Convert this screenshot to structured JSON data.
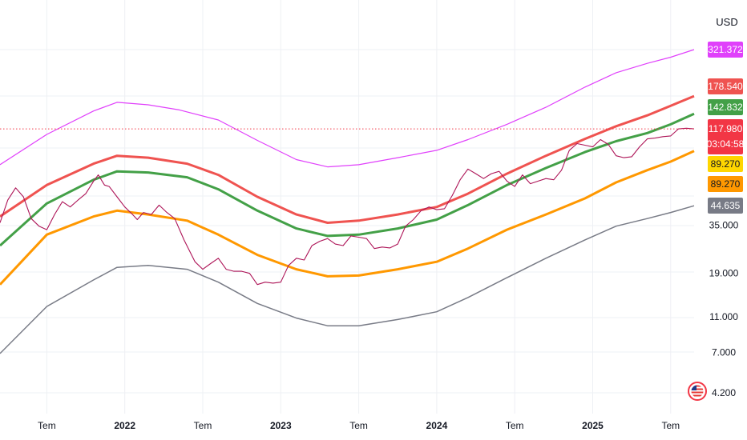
{
  "currency_label": "USD",
  "chart_data": {
    "type": "line",
    "scale": "log",
    "grid": true,
    "x": {
      "start": 2021.2,
      "end": 2025.65,
      "ticks": [
        {
          "value": 2021.5,
          "label": "Tem",
          "bold": false
        },
        {
          "value": 2022.0,
          "label": "2022",
          "bold": true
        },
        {
          "value": 2022.5,
          "label": "Tem",
          "bold": false
        },
        {
          "value": 2023.0,
          "label": "2023",
          "bold": true
        },
        {
          "value": 2023.5,
          "label": "Tem",
          "bold": false
        },
        {
          "value": 2024.0,
          "label": "2024",
          "bold": true
        },
        {
          "value": 2024.5,
          "label": "Tem",
          "bold": false
        },
        {
          "value": 2025.0,
          "label": "2025",
          "bold": true
        },
        {
          "value": 2025.5,
          "label": "Tem",
          "bold": false
        }
      ]
    },
    "y_ticks": [
      {
        "value": 35000,
        "label": "35.000"
      },
      {
        "value": 19000,
        "label": "19.000"
      },
      {
        "value": 11000,
        "label": "11.000"
      },
      {
        "value": 7000,
        "label": "7.000"
      },
      {
        "value": 4200,
        "label": "4.200"
      }
    ],
    "last_price": 117980,
    "countdown": "03:04:58",
    "price_badges": [
      {
        "label": "321.372",
        "value": 321372,
        "color": "#e040fb"
      },
      {
        "label": "178.540",
        "value": 178540,
        "color": "#ef5350"
      },
      {
        "label": "142.832",
        "value": 142832,
        "color": "#43a047"
      },
      {
        "label": "89.270",
        "value": 89270,
        "color": "#ffd600",
        "text_color": "#131722"
      },
      {
        "label": "89.270",
        "value": 89270,
        "color": "#ff9800",
        "text_color": "#131722"
      },
      {
        "label": "44.635",
        "value": 44635,
        "color": "#787b86"
      }
    ],
    "series": [
      {
        "key": "band_top",
        "color": "#e040fb",
        "width": 1.2,
        "points": [
          [
            2021.2,
            75000
          ],
          [
            2021.5,
            110000
          ],
          [
            2021.8,
            148000
          ],
          [
            2021.95,
            165000
          ],
          [
            2022.15,
            160000
          ],
          [
            2022.35,
            150000
          ],
          [
            2022.6,
            132000
          ],
          [
            2022.85,
            102000
          ],
          [
            2023.1,
            80000
          ],
          [
            2023.3,
            73000
          ],
          [
            2023.5,
            75000
          ],
          [
            2023.75,
            82000
          ],
          [
            2024.0,
            90000
          ],
          [
            2024.2,
            103000
          ],
          [
            2024.45,
            125000
          ],
          [
            2024.7,
            155000
          ],
          [
            2024.95,
            200000
          ],
          [
            2025.15,
            240000
          ],
          [
            2025.35,
            270000
          ],
          [
            2025.5,
            292000
          ],
          [
            2025.65,
            321372
          ]
        ]
      },
      {
        "key": "band_upper",
        "color": "#ef5350",
        "width": 3,
        "points": [
          [
            2021.2,
            39000
          ],
          [
            2021.5,
            58000
          ],
          [
            2021.8,
            76000
          ],
          [
            2021.95,
            84000
          ],
          [
            2022.15,
            82000
          ],
          [
            2022.4,
            76000
          ],
          [
            2022.6,
            66000
          ],
          [
            2022.85,
            50000
          ],
          [
            2023.1,
            40000
          ],
          [
            2023.3,
            36000
          ],
          [
            2023.5,
            37000
          ],
          [
            2023.75,
            40000
          ],
          [
            2024.0,
            44000
          ],
          [
            2024.2,
            52000
          ],
          [
            2024.45,
            67000
          ],
          [
            2024.7,
            84000
          ],
          [
            2024.95,
            104000
          ],
          [
            2025.15,
            122000
          ],
          [
            2025.35,
            140000
          ],
          [
            2025.5,
            158000
          ],
          [
            2025.65,
            178540
          ]
        ]
      },
      {
        "key": "band_mid",
        "color": "#43a047",
        "width": 3,
        "points": [
          [
            2021.2,
            27000
          ],
          [
            2021.5,
            46000
          ],
          [
            2021.8,
            62000
          ],
          [
            2021.95,
            69000
          ],
          [
            2022.15,
            68000
          ],
          [
            2022.4,
            64000
          ],
          [
            2022.6,
            55000
          ],
          [
            2022.85,
            42000
          ],
          [
            2023.1,
            33500
          ],
          [
            2023.3,
            30500
          ],
          [
            2023.5,
            31000
          ],
          [
            2023.75,
            33500
          ],
          [
            2024.0,
            37500
          ],
          [
            2024.2,
            45000
          ],
          [
            2024.45,
            58000
          ],
          [
            2024.7,
            72000
          ],
          [
            2024.95,
            88000
          ],
          [
            2025.15,
            101000
          ],
          [
            2025.35,
            112000
          ],
          [
            2025.5,
            125000
          ],
          [
            2025.65,
            142832
          ]
        ]
      },
      {
        "key": "band_lower",
        "color": "#ff9800",
        "width": 3,
        "points": [
          [
            2021.2,
            16500
          ],
          [
            2021.5,
            31000
          ],
          [
            2021.8,
            39000
          ],
          [
            2021.95,
            42000
          ],
          [
            2022.15,
            40000
          ],
          [
            2022.4,
            37000
          ],
          [
            2022.6,
            31000
          ],
          [
            2022.85,
            24000
          ],
          [
            2023.1,
            20000
          ],
          [
            2023.3,
            18300
          ],
          [
            2023.5,
            18500
          ],
          [
            2023.75,
            20000
          ],
          [
            2024.0,
            22000
          ],
          [
            2024.2,
            26000
          ],
          [
            2024.45,
            33000
          ],
          [
            2024.7,
            40000
          ],
          [
            2024.95,
            49000
          ],
          [
            2025.15,
            60000
          ],
          [
            2025.35,
            70000
          ],
          [
            2025.5,
            78000
          ],
          [
            2025.65,
            89270
          ]
        ]
      },
      {
        "key": "band_bottom",
        "color": "#787b86",
        "width": 1.5,
        "points": [
          [
            2021.2,
            6900
          ],
          [
            2021.5,
            12500
          ],
          [
            2021.8,
            17500
          ],
          [
            2021.95,
            20500
          ],
          [
            2022.15,
            21000
          ],
          [
            2022.4,
            20000
          ],
          [
            2022.6,
            17000
          ],
          [
            2022.85,
            13000
          ],
          [
            2023.1,
            10800
          ],
          [
            2023.3,
            9800
          ],
          [
            2023.5,
            9800
          ],
          [
            2023.75,
            10600
          ],
          [
            2024.0,
            11700
          ],
          [
            2024.2,
            14000
          ],
          [
            2024.45,
            18000
          ],
          [
            2024.7,
            23000
          ],
          [
            2024.95,
            29000
          ],
          [
            2025.15,
            34500
          ],
          [
            2025.35,
            38000
          ],
          [
            2025.5,
            41000
          ],
          [
            2025.65,
            44635
          ]
        ]
      },
      {
        "key": "price",
        "color": "#ad1457",
        "width": 1.1,
        "points": [
          [
            2021.2,
            36000
          ],
          [
            2021.25,
            48000
          ],
          [
            2021.3,
            56000
          ],
          [
            2021.35,
            50000
          ],
          [
            2021.4,
            38000
          ],
          [
            2021.45,
            34500
          ],
          [
            2021.5,
            33000
          ],
          [
            2021.55,
            40000
          ],
          [
            2021.6,
            47000
          ],
          [
            2021.65,
            44000
          ],
          [
            2021.7,
            48000
          ],
          [
            2021.75,
            52000
          ],
          [
            2021.8,
            61000
          ],
          [
            2021.83,
            66000
          ],
          [
            2021.87,
            58000
          ],
          [
            2021.9,
            57000
          ],
          [
            2021.95,
            50000
          ],
          [
            2022.0,
            44000
          ],
          [
            2022.05,
            40000
          ],
          [
            2022.08,
            37500
          ],
          [
            2022.12,
            41000
          ],
          [
            2022.17,
            40000
          ],
          [
            2022.22,
            45000
          ],
          [
            2022.27,
            41000
          ],
          [
            2022.32,
            38000
          ],
          [
            2022.38,
            29000
          ],
          [
            2022.45,
            22000
          ],
          [
            2022.5,
            20000
          ],
          [
            2022.55,
            21500
          ],
          [
            2022.6,
            23000
          ],
          [
            2022.65,
            20000
          ],
          [
            2022.7,
            19500
          ],
          [
            2022.75,
            19500
          ],
          [
            2022.8,
            19000
          ],
          [
            2022.85,
            16500
          ],
          [
            2022.9,
            17000
          ],
          [
            2022.95,
            16800
          ],
          [
            2023.0,
            17000
          ],
          [
            2023.05,
            21000
          ],
          [
            2023.1,
            23000
          ],
          [
            2023.15,
            22500
          ],
          [
            2023.2,
            27000
          ],
          [
            2023.25,
            28500
          ],
          [
            2023.3,
            29500
          ],
          [
            2023.35,
            27500
          ],
          [
            2023.4,
            27000
          ],
          [
            2023.45,
            30500
          ],
          [
            2023.5,
            30000
          ],
          [
            2023.55,
            29500
          ],
          [
            2023.6,
            26000
          ],
          [
            2023.65,
            26500
          ],
          [
            2023.7,
            26200
          ],
          [
            2023.75,
            27500
          ],
          [
            2023.8,
            34500
          ],
          [
            2023.85,
            37500
          ],
          [
            2023.9,
            42000
          ],
          [
            2023.95,
            44000
          ],
          [
            2024.0,
            42500
          ],
          [
            2024.05,
            43000
          ],
          [
            2024.1,
            51000
          ],
          [
            2024.15,
            62000
          ],
          [
            2024.2,
            71000
          ],
          [
            2024.25,
            67000
          ],
          [
            2024.3,
            63000
          ],
          [
            2024.35,
            67000
          ],
          [
            2024.4,
            69000
          ],
          [
            2024.45,
            61000
          ],
          [
            2024.5,
            57000
          ],
          [
            2024.55,
            66000
          ],
          [
            2024.6,
            59000
          ],
          [
            2024.65,
            61000
          ],
          [
            2024.7,
            63000
          ],
          [
            2024.75,
            62000
          ],
          [
            2024.8,
            70000
          ],
          [
            2024.85,
            90000
          ],
          [
            2024.9,
            98000
          ],
          [
            2024.95,
            96000
          ],
          [
            2025.0,
            94000
          ],
          [
            2025.05,
            103000
          ],
          [
            2025.1,
            97000
          ],
          [
            2025.15,
            84000
          ],
          [
            2025.2,
            82000
          ],
          [
            2025.25,
            83000
          ],
          [
            2025.3,
            94000
          ],
          [
            2025.35,
            104000
          ],
          [
            2025.4,
            105000
          ],
          [
            2025.45,
            107000
          ],
          [
            2025.5,
            108000
          ],
          [
            2025.55,
            118000
          ],
          [
            2025.6,
            119000
          ],
          [
            2025.65,
            117980
          ]
        ]
      }
    ]
  }
}
